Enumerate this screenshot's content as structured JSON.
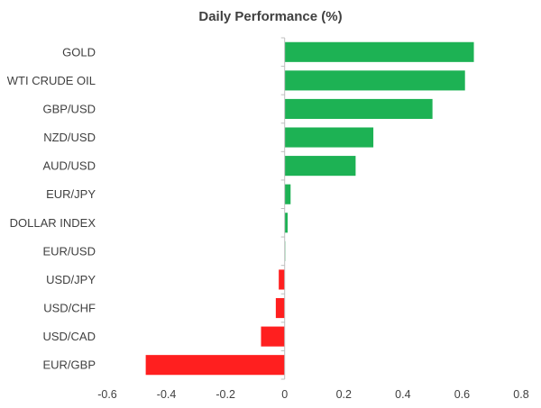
{
  "chart_data": {
    "type": "bar",
    "orientation": "horizontal",
    "title": "Daily Performance (%)",
    "xlabel": "",
    "ylabel": "",
    "categories": [
      "GOLD",
      "WTI CRUDE OIL",
      "GBP/USD",
      "NZD/USD",
      "AUD/USD",
      "EUR/JPY",
      "DOLLAR INDEX",
      "EUR/USD",
      "USD/JPY",
      "USD/CHF",
      "USD/CAD",
      "EUR/GBP"
    ],
    "values": [
      0.64,
      0.61,
      0.5,
      0.3,
      0.24,
      0.02,
      0.01,
      0.002,
      -0.02,
      -0.03,
      -0.08,
      -0.47
    ],
    "xlim": [
      -0.6,
      0.8
    ],
    "xticks": [
      -0.6,
      -0.4,
      -0.2,
      0,
      0.2,
      0.4,
      0.6,
      0.8
    ],
    "xtick_labels": [
      "-0.6",
      "-0.4",
      "-0.2",
      "0",
      "0.2",
      "0.4",
      "0.6",
      "0.8"
    ],
    "grid": false,
    "colors": {
      "positive": "#1db254",
      "negative": "#ff1f1f",
      "axis": "#bfbfbf",
      "text": "#404040"
    }
  }
}
